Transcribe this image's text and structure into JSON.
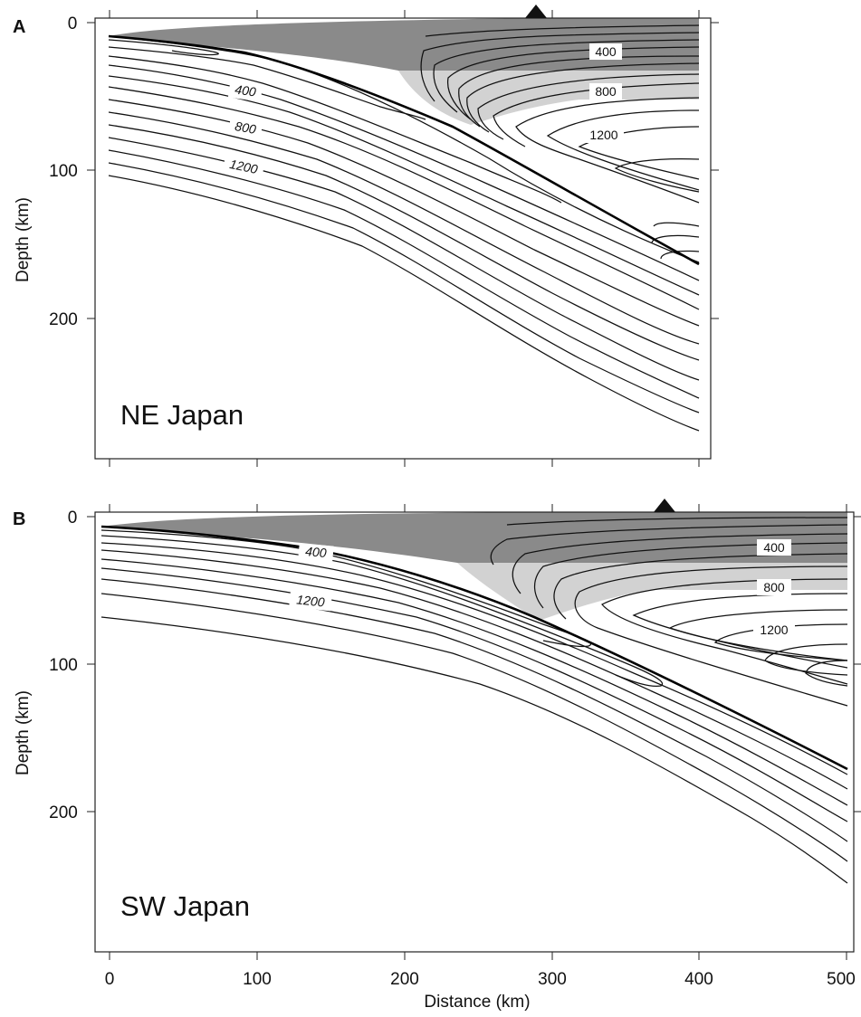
{
  "panels": [
    {
      "id": "A",
      "region": "NE Japan",
      "y_axis_label": "Depth (km)",
      "y_ticks": [
        "0",
        "100",
        "200"
      ],
      "x_ticks": [],
      "x_axis_label": "",
      "upper_labels": [
        "400",
        "800",
        "1200"
      ],
      "lower_labels": [
        "400",
        "800",
        "1200"
      ],
      "volcano": "volcano-marker"
    },
    {
      "id": "B",
      "region": "SW Japan",
      "y_axis_label": "Depth (km)",
      "y_ticks": [
        "0",
        "100",
        "200"
      ],
      "x_ticks": [
        "0",
        "100",
        "200",
        "300",
        "400",
        "500"
      ],
      "x_axis_label": "Distance (km)",
      "upper_labels": [
        "400",
        "800",
        "1200"
      ],
      "lower_labels": [
        "400",
        "1200"
      ],
      "volcano": "volcano-marker"
    }
  ],
  "colors": {
    "crust_dark": "#8a8a8a",
    "crust_light": "#d2d2d2",
    "line": "#111111"
  }
}
